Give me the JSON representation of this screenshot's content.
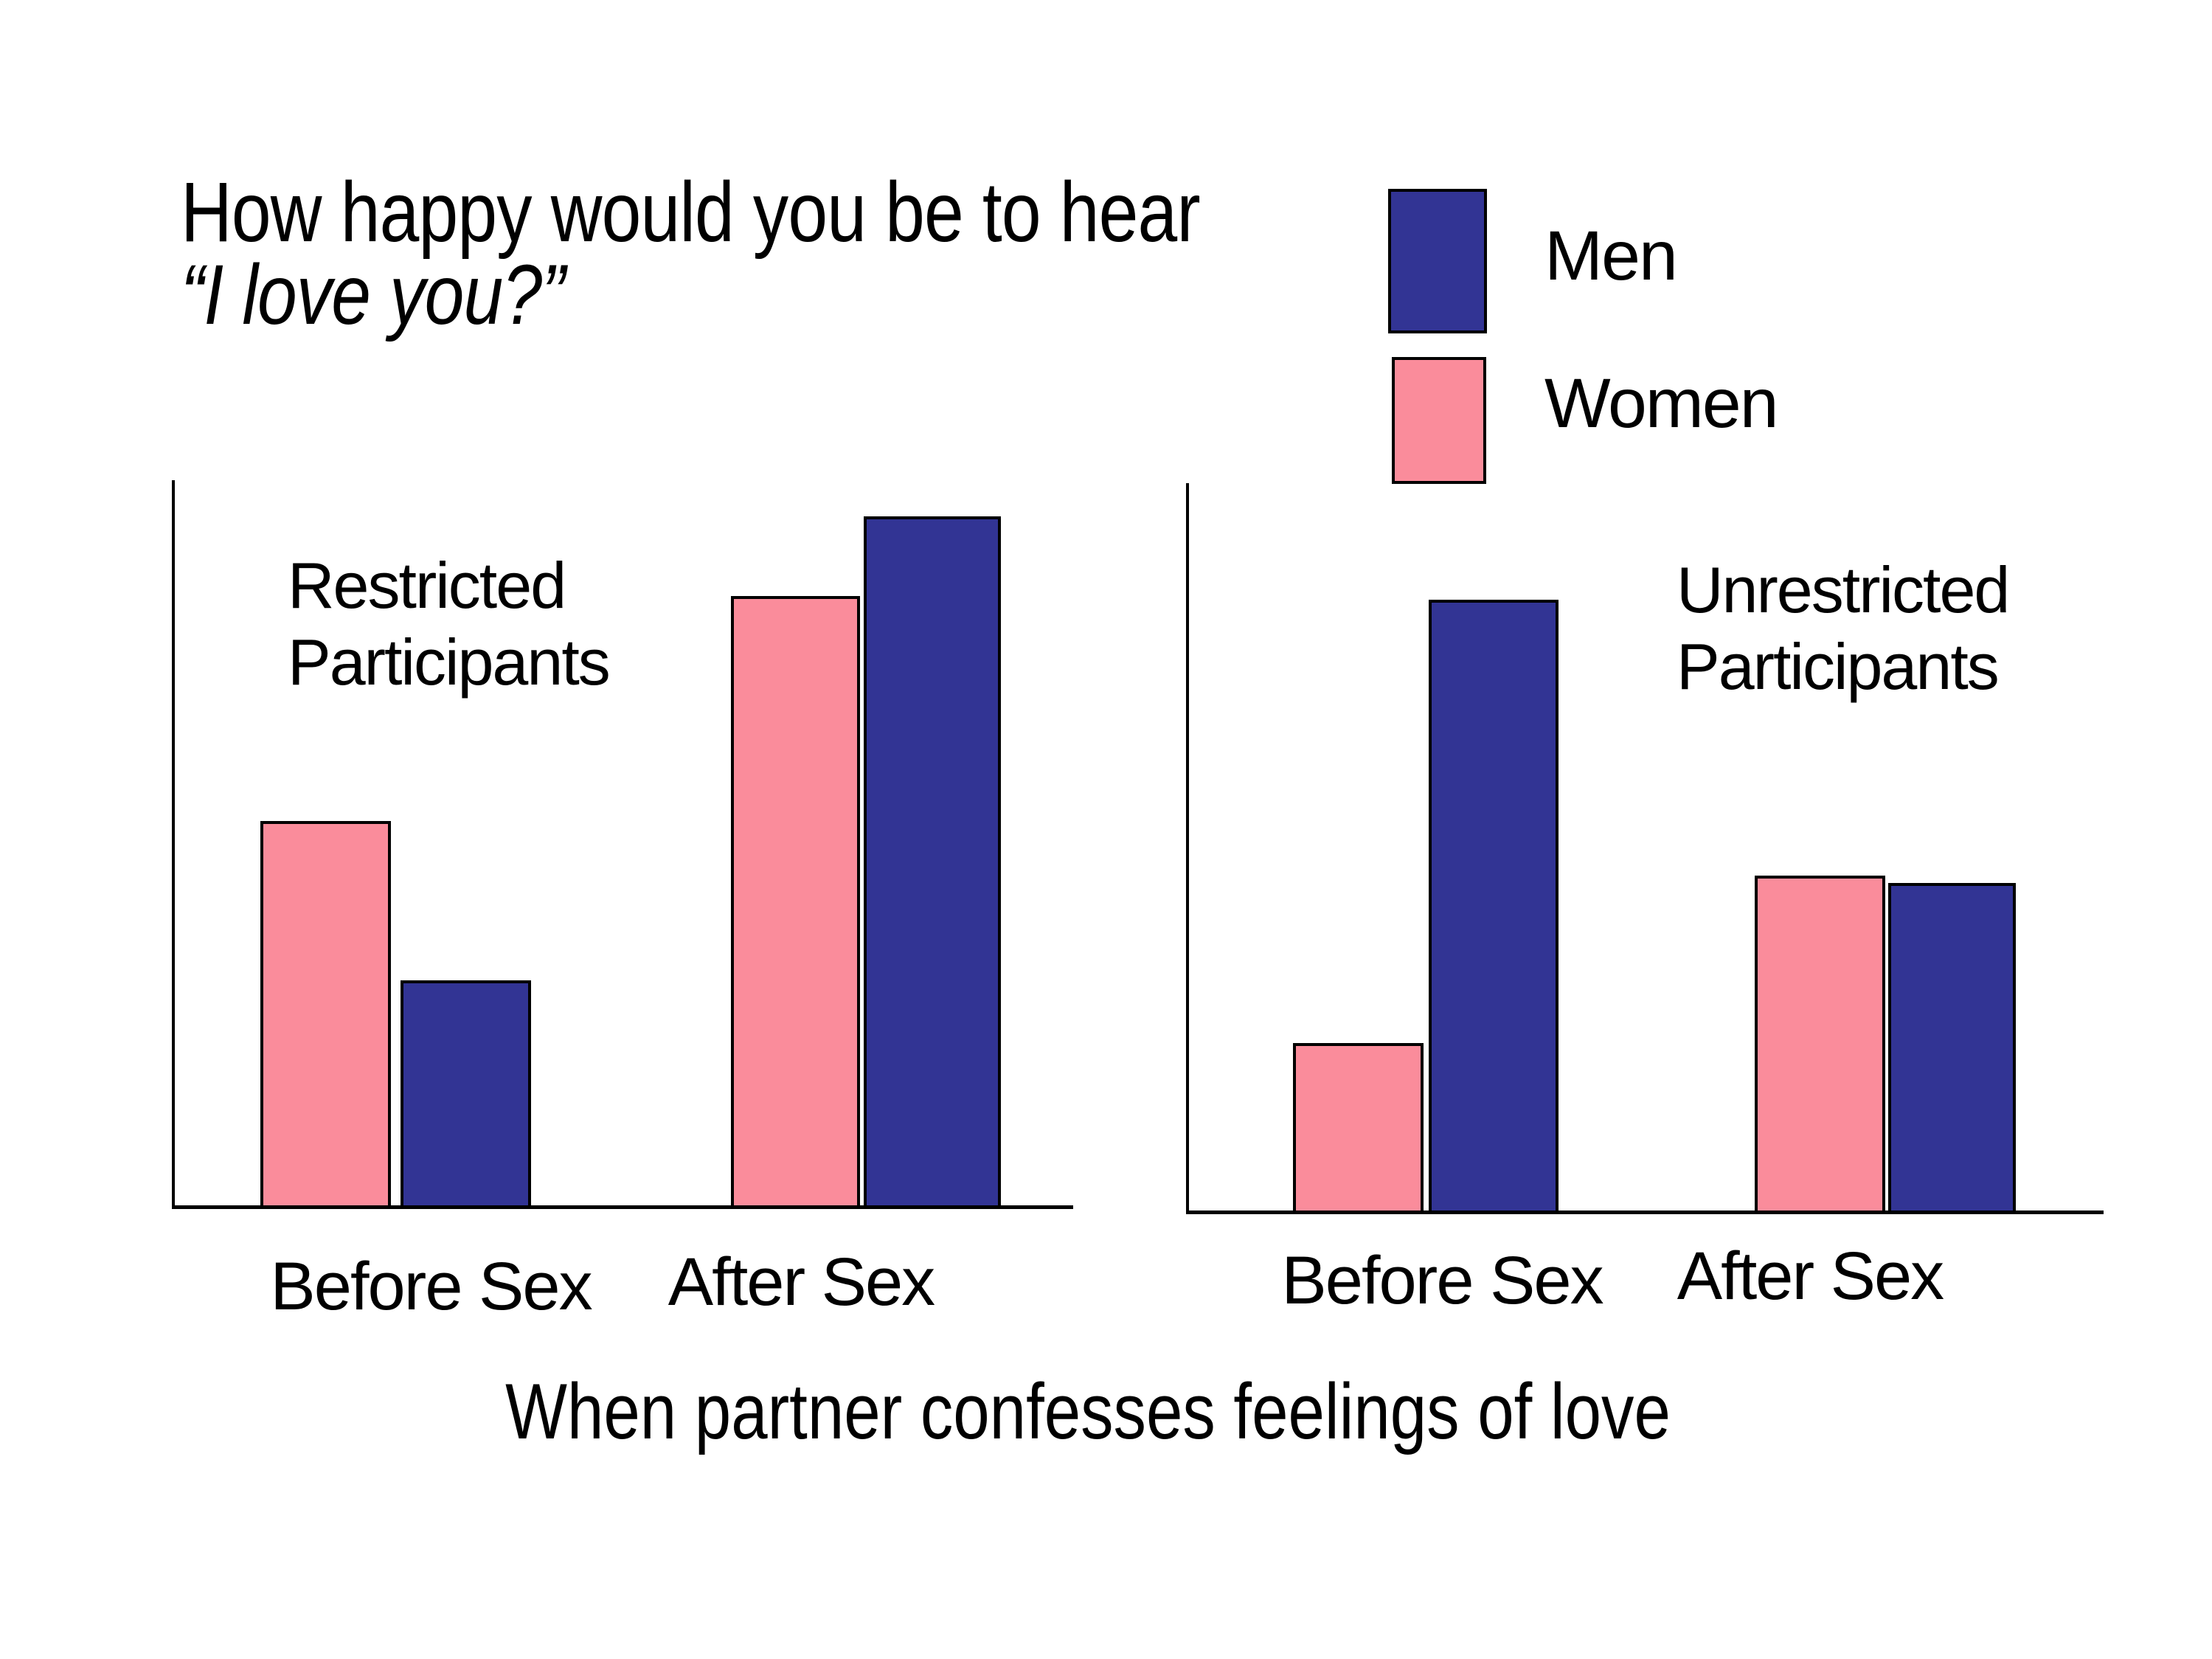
{
  "page": {
    "background": "#ffffff"
  },
  "title": {
    "line1": "How happy would you be to hear",
    "line2": "“I love you?”"
  },
  "legend": {
    "position": "top-right",
    "items": [
      {
        "label": "Men",
        "color": "#323494"
      },
      {
        "label": "Women",
        "color": "#FA8C9B"
      }
    ]
  },
  "colors": {
    "men": "#323494",
    "women": "#FA8C9B",
    "outline": "#000000"
  },
  "caption": "When partner confesses feelings of love",
  "chart_data": [
    {
      "type": "bar",
      "panel_label": "Restricted\nParticipants",
      "categories": [
        "Before Sex",
        "After Sex"
      ],
      "series": [
        {
          "name": "Women",
          "values": [
            53,
            84
          ]
        },
        {
          "name": "Men",
          "values": [
            31,
            95
          ]
        }
      ],
      "ylim": [
        0,
        100
      ],
      "grid": false,
      "y_axis_ticks": "none",
      "note": "values estimated from bar heights; y-axis is unlabeled happiness scale"
    },
    {
      "type": "bar",
      "panel_label": "Unrestricted\nParticipants",
      "categories": [
        "Before Sex",
        "After Sex"
      ],
      "series": [
        {
          "name": "Women",
          "values": [
            23,
            46
          ]
        },
        {
          "name": "Men",
          "values": [
            84,
            45
          ]
        }
      ],
      "ylim": [
        0,
        100
      ],
      "grid": false,
      "y_axis_ticks": "none",
      "note": "values estimated from bar heights; y-axis is unlabeled happiness scale"
    }
  ]
}
